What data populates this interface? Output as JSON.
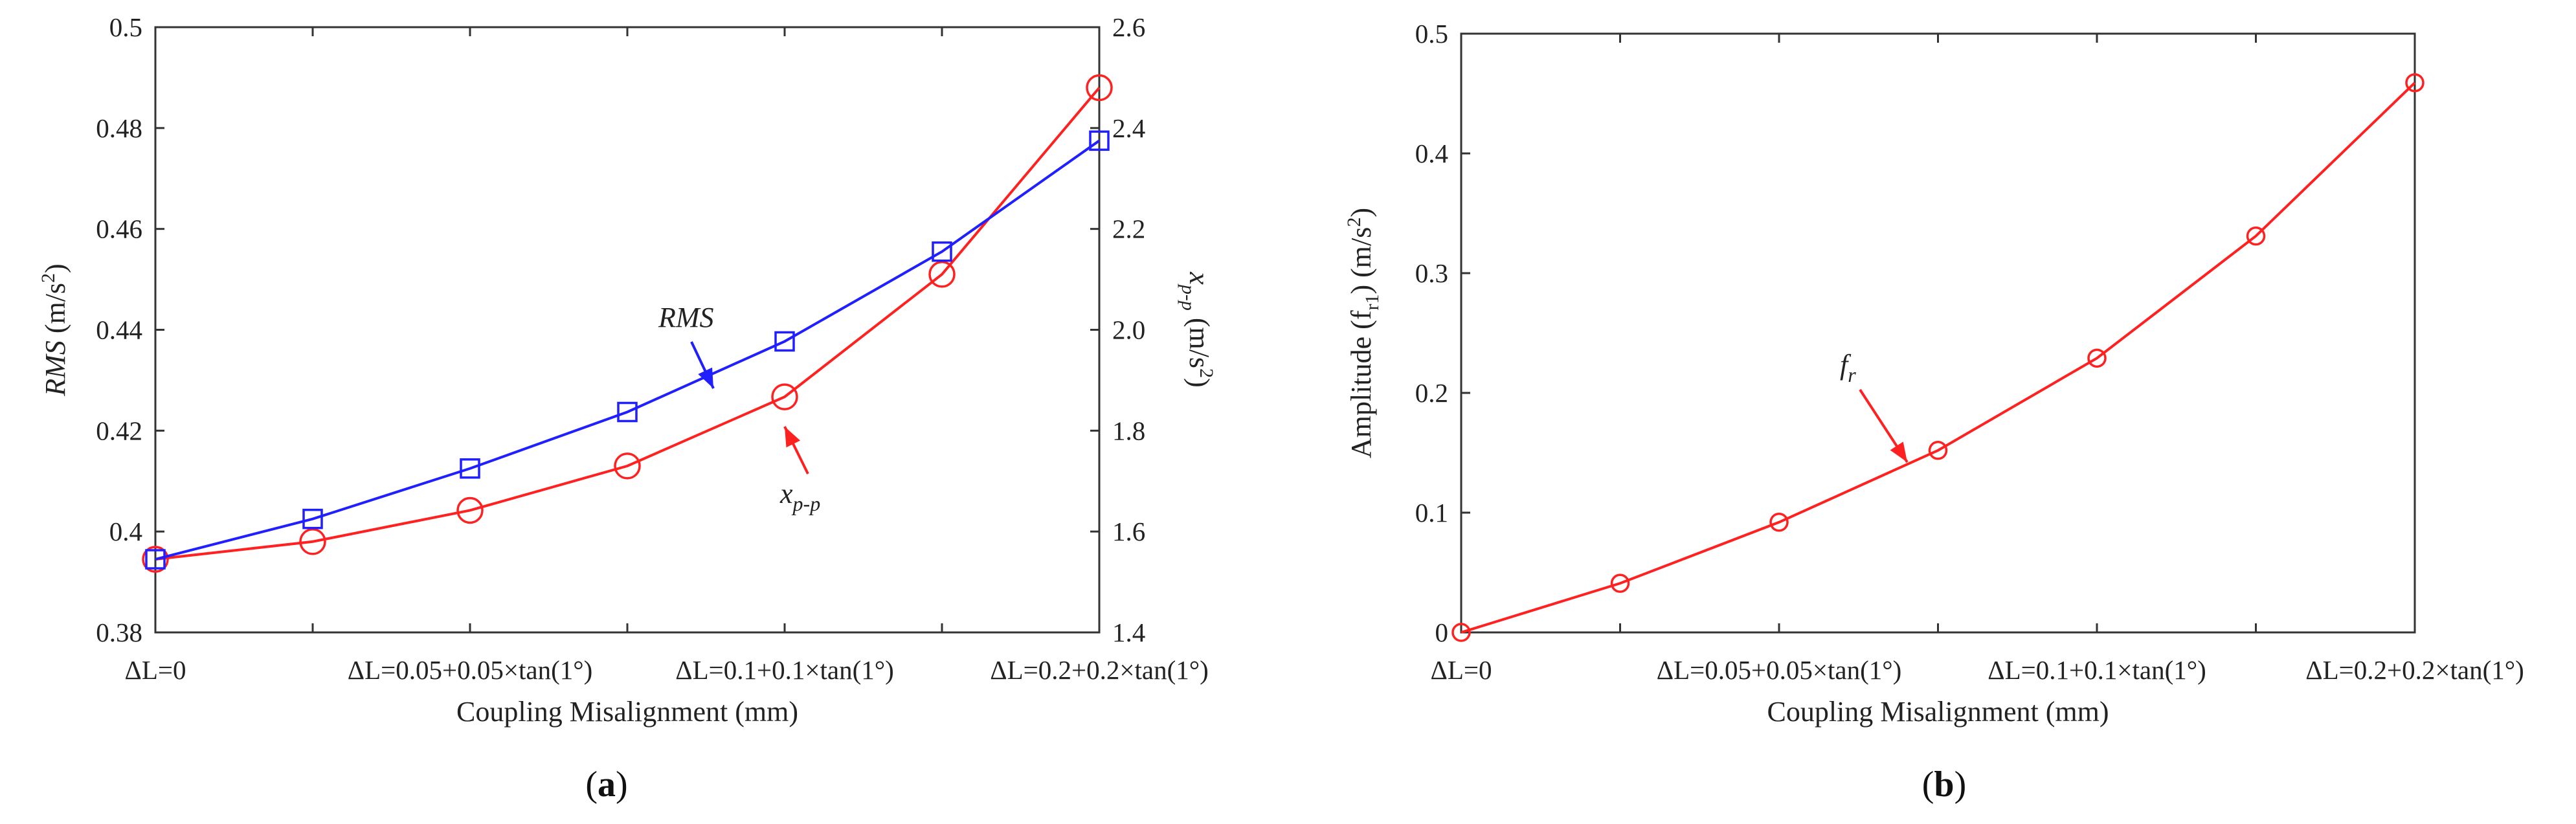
{
  "colors": {
    "blue": "#1f1fff",
    "red": "#ff2020",
    "axis": "#333333"
  },
  "chart_data": [
    {
      "panel": "a",
      "type": "line",
      "categories": [
        "ΔL=0",
        "",
        "ΔL=0.05+0.05×tan(1°)",
        "",
        "ΔL=0.1+0.1×tan(1°)",
        "",
        "ΔL=0.2+0.2×tan(1°)"
      ],
      "xlabel": "Coupling Misalignment (mm)",
      "ylabel_left": {
        "main": "RMS",
        "unit": " (m/s",
        "exp": "2",
        "close": ")"
      },
      "ylabel_right": {
        "main": "x",
        "sub": "p-p",
        "unit": " (m/s",
        "exp": "2",
        "close": ")"
      },
      "ylim_left": [
        0.38,
        0.5
      ],
      "yticks_left": [
        "0.38",
        "0.4",
        "0.42",
        "0.44",
        "0.46",
        "0.48",
        "0.5"
      ],
      "ylim_right": [
        1.4,
        2.6
      ],
      "yticks_right": [
        "1.4",
        "1.6",
        "1.8",
        "2.0",
        "2.2",
        "2.4",
        "2.6"
      ],
      "series": [
        {
          "name": "RMS",
          "axis": "left",
          "marker": "square",
          "color": "#1f1fff",
          "values": [
            0.3945,
            0.4025,
            0.4125,
            0.4237,
            0.4377,
            0.4555,
            0.4775
          ]
        },
        {
          "name": "x p-p",
          "axis": "right",
          "marker": "circle",
          "color": "#ff2020",
          "values": [
            1.545,
            1.58,
            1.642,
            1.73,
            1.867,
            2.11,
            2.48
          ]
        }
      ],
      "annotations": [
        {
          "text": "RMS",
          "series": 0
        },
        {
          "text": "x",
          "sub": "p-p",
          "series": 1
        }
      ],
      "grid": false
    },
    {
      "panel": "b",
      "type": "line",
      "categories": [
        "ΔL=0",
        "",
        "ΔL=0.05+0.05×tan(1°)",
        "",
        "ΔL=0.1+0.1×tan(1°)",
        "",
        "ΔL=0.2+0.2×tan(1°)"
      ],
      "xlabel": "Coupling Misalignment (mm)",
      "ylabel": {
        "main": "Amplitude (f",
        "sub": "r1",
        "unit": ") (m/s",
        "exp": "2",
        "close": ")"
      },
      "ylim": [
        0,
        0.5
      ],
      "yticks": [
        "0",
        "0.1",
        "0.2",
        "0.3",
        "0.4",
        "0.5"
      ],
      "series": [
        {
          "name": "fr",
          "marker": "circle",
          "color": "#ff2020",
          "values": [
            0.0,
            0.041,
            0.092,
            0.152,
            0.229,
            0.331,
            0.459
          ]
        }
      ],
      "annotations": [
        {
          "text": "f",
          "sub": "r"
        }
      ],
      "grid": false
    }
  ],
  "panel_labels": [
    "(a)",
    "(b)"
  ]
}
